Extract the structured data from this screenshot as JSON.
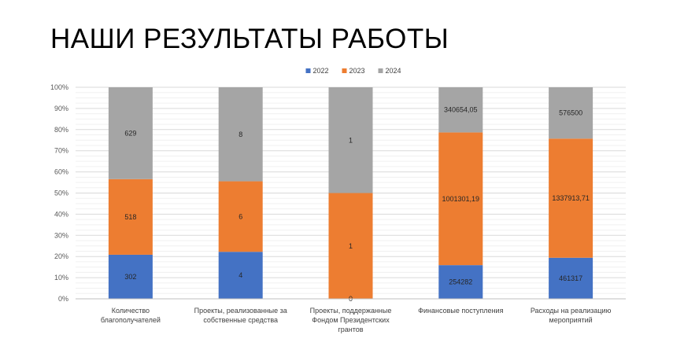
{
  "slide": {
    "title": "НАШИ РЕЗУЛЬТАТЫ РАБОТЫ"
  },
  "chart_data": {
    "type": "bar",
    "stacked": "percent",
    "categories": [
      [
        "Количество",
        "благополучателей"
      ],
      [
        "Проекты, реализованные за",
        "собственные средства"
      ],
      [
        "Проекты, поддержанные",
        "Фондом Президентских",
        "грантов"
      ],
      [
        "Финансовые поступления"
      ],
      [
        "Расходы на реализацию",
        "мероприятий"
      ]
    ],
    "series": [
      {
        "name": "2022",
        "color": "#4472C4",
        "values": [
          302,
          4,
          0,
          254282,
          461317
        ],
        "labels": [
          "302",
          "4",
          "0",
          "254282",
          "461317"
        ]
      },
      {
        "name": "2023",
        "color": "#ED7D31",
        "values": [
          518,
          6,
          1,
          1001301.19,
          1337913.71
        ],
        "labels": [
          "518",
          "6",
          "1",
          "1001301,19",
          "1337913,71"
        ]
      },
      {
        "name": "2024",
        "color": "#A5A5A5",
        "values": [
          629,
          8,
          1,
          340654.05,
          576500
        ],
        "labels": [
          "629",
          "8",
          "1",
          "340654,05",
          "576500"
        ]
      }
    ],
    "yticks": [
      "0%",
      "10%",
      "20%",
      "30%",
      "40%",
      "50%",
      "60%",
      "70%",
      "80%",
      "90%",
      "100%"
    ],
    "ylim": [
      0,
      100
    ],
    "grid": true,
    "legend": "top-center"
  }
}
